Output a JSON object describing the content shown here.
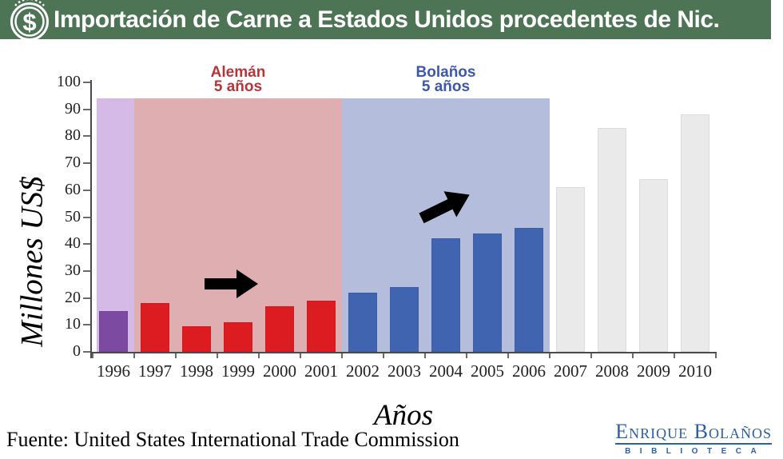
{
  "header": {
    "title": "Importación de Carne a Estados Unidos procedentes de Nic.",
    "bg_color": "#4d7454",
    "icon": "dollar-circle"
  },
  "chart_data": {
    "type": "bar",
    "title": "Importación de Carne a Estados Unidos procedentes de Nic.",
    "xlabel": "Años",
    "ylabel": "Millones US$",
    "ylim": [
      0,
      100
    ],
    "ytick_step": 10,
    "grid": false,
    "legend": false,
    "categories": [
      "1996",
      "1997",
      "1998",
      "1999",
      "2000",
      "2001",
      "2002",
      "2003",
      "2004",
      "2005",
      "2006",
      "2007",
      "2008",
      "2009",
      "2010"
    ],
    "values": [
      15,
      18,
      9.5,
      11,
      17,
      19,
      22,
      24,
      42,
      44,
      46,
      61,
      83,
      64,
      88
    ],
    "region_top_value": 94,
    "periods": [
      {
        "name": "pre-aleman",
        "start_index": 0,
        "end_index": 0,
        "bar_color": "#7c4aa0",
        "region_color": "#d5b9e6",
        "label_line1": "",
        "label_line2": "",
        "label_color": ""
      },
      {
        "name": "aleman",
        "start_index": 1,
        "end_index": 5,
        "bar_color": "#dd1c21",
        "region_color": "#dfaeb1",
        "label_line1": "Alemán",
        "label_line2": "5 años",
        "label_color": "#b5353b"
      },
      {
        "name": "bolanos",
        "start_index": 6,
        "end_index": 10,
        "bar_color": "#4164b0",
        "region_color": "#b5bddd",
        "label_line1": "Bolaños",
        "label_line2": "5 años",
        "label_color": "#3c58a9"
      },
      {
        "name": "post-bolanos",
        "start_index": 11,
        "end_index": 14,
        "bar_color": "#eaeaea",
        "region_color": null,
        "label_line1": "",
        "label_line2": "",
        "label_color": ""
      }
    ],
    "annotations": [
      {
        "name": "trend-arrow-aleman",
        "shape": "block-arrow",
        "direction": "right",
        "color": "#000000"
      },
      {
        "name": "trend-arrow-bolanos",
        "shape": "block-arrow",
        "direction": "up-right",
        "color": "#000000"
      }
    ]
  },
  "footer": {
    "source_text": "Fuente: United States International Trade Commission"
  },
  "logo": {
    "name_text": "Enrique Bolaños",
    "subtitle_text": "BIBLIOTECA",
    "color": "#2d5fa4"
  }
}
